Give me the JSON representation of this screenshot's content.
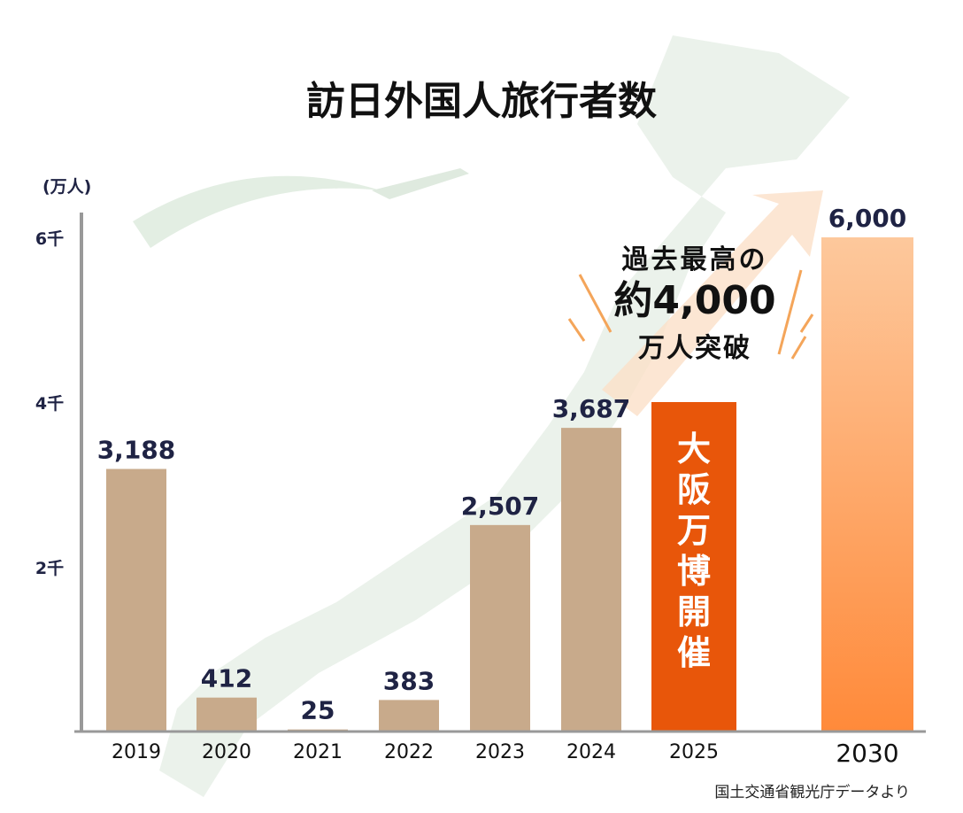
{
  "chart_data": {
    "type": "bar",
    "title": "訪日外国人旅行者数",
    "ylabel": "(万人)",
    "ylim": [
      0,
      6000
    ],
    "yticks": [
      {
        "value": 2000,
        "label": "2千"
      },
      {
        "value": 4000,
        "label": "4千"
      },
      {
        "value": 6000,
        "label": "6千"
      }
    ],
    "categories": [
      "2019",
      "2020",
      "2021",
      "2022",
      "2023",
      "2024",
      "2025",
      "2030"
    ],
    "values": [
      3188,
      412,
      25,
      383,
      2507,
      3687,
      4000,
      6000
    ],
    "data_labels": [
      "3,188",
      "412",
      "25",
      "383",
      "2,507",
      "3,687",
      "",
      "6,000"
    ],
    "bar_colors": [
      "#c8aa8b",
      "#c8aa8b",
      "#c8aa8b",
      "#c8aa8b",
      "#c8aa8b",
      "#c8aa8b",
      "#e8560a",
      "#ff8f45"
    ],
    "grid": false,
    "annotations": {
      "bar_2025_label": "大阪万博開催",
      "callout_line1": "過去最高の",
      "callout_line2": "約4,000",
      "callout_line3": "万人突破"
    },
    "source": "国土交通省観光庁データより"
  }
}
